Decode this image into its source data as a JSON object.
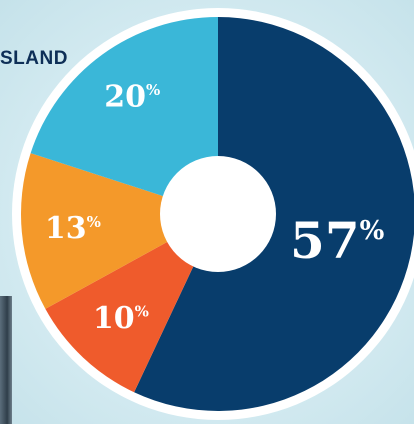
{
  "header_fragment": "SLAND",
  "colors": {
    "background": "#cfe8ee",
    "ring": "#ffffff",
    "hole": "#ffffff"
  },
  "chart_data": {
    "type": "pie",
    "donut": true,
    "slices": [
      {
        "value": 57,
        "label": "57",
        "suffix": "%",
        "color": "#083d6c"
      },
      {
        "value": 10,
        "label": "10",
        "suffix": "%",
        "color": "#ef5b2c"
      },
      {
        "value": 13,
        "label": "13",
        "suffix": "%",
        "color": "#f4992a"
      },
      {
        "value": 20,
        "label": "20",
        "suffix": "%",
        "color": "#3ab7d8"
      }
    ]
  }
}
